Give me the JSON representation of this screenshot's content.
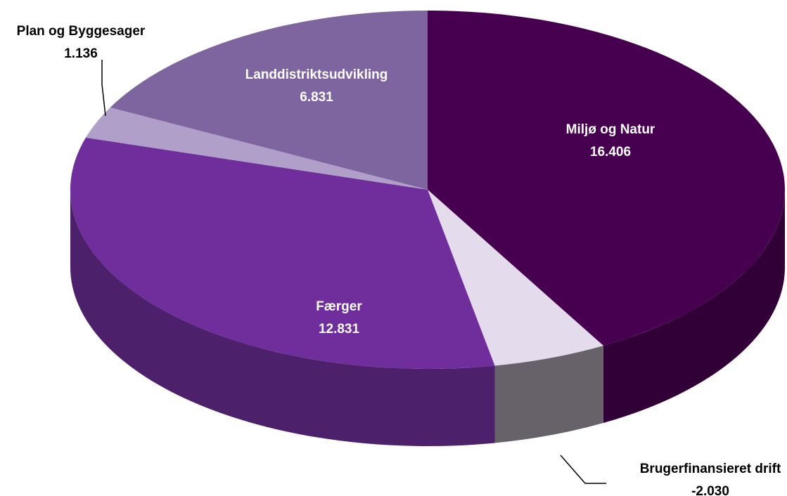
{
  "chart_data": {
    "type": "pie3d",
    "categories": [
      "Miljø og Natur",
      "Brugerfinansieret drift",
      "Færger",
      "Plan og Byggesager",
      "Landdistriktsudvikling"
    ],
    "values": [
      16.406,
      -2.03,
      12.831,
      1.136,
      6.831
    ],
    "value_labels": [
      "16.406",
      "-2.030",
      "12.831",
      "1.136",
      "6.831"
    ],
    "colors": [
      "#47004f",
      "#e4dcec",
      "#6f2e9b",
      "#b09fc8",
      "#7f65a0"
    ]
  }
}
